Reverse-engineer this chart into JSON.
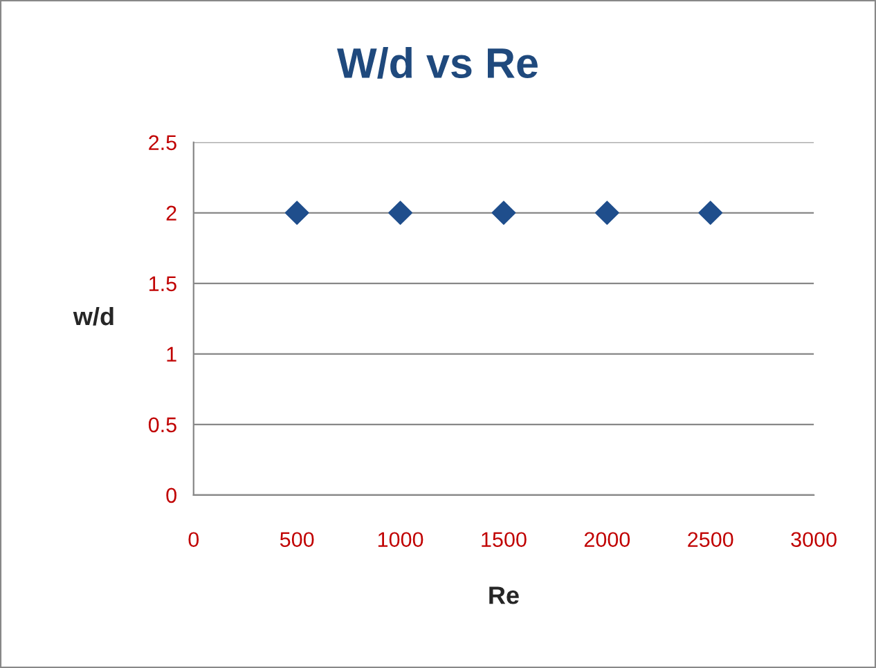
{
  "chart_data": {
    "type": "scatter",
    "title": "W/d vs Re",
    "xlabel": "Re",
    "ylabel": "w/d",
    "x": [
      500,
      1000,
      1500,
      2000,
      2500
    ],
    "series": [
      {
        "color": "#1f4e8c",
        "values": [
          2,
          2,
          2,
          2,
          2
        ]
      }
    ],
    "xlim": [
      0,
      3000
    ],
    "xticks": [
      0,
      500,
      1000,
      1500,
      2000,
      2500,
      3000
    ],
    "ylim": [
      0,
      2.5
    ],
    "yticks": [
      0,
      0.5,
      1,
      1.5,
      2,
      2.5
    ],
    "grid": "y",
    "marker": "diamond",
    "legend": false
  }
}
